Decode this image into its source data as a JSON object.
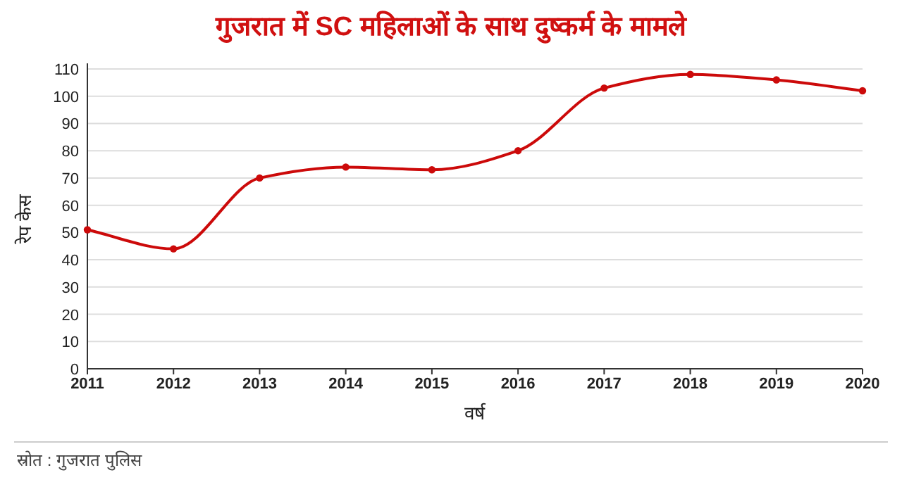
{
  "chart_data": {
    "type": "line",
    "title": "गुजरात में SC महिलाओं के साथ दुष्कर्म के मामले",
    "xlabel": "वर्ष",
    "ylabel": "रेप केस",
    "annotations": [
      "स्रोत : गुजरात पुलिस"
    ],
    "x": [
      2011,
      2012,
      2013,
      2014,
      2015,
      2016,
      2017,
      2018,
      2019,
      2020
    ],
    "series": [
      {
        "color": "#cc0a0a",
        "values": [
          51,
          44,
          70,
          74,
          73,
          80,
          103,
          108,
          106,
          102
        ]
      }
    ],
    "xlim": [
      2011,
      2020
    ],
    "xticks": [
      2011,
      2012,
      2013,
      2014,
      2015,
      2016,
      2017,
      2018,
      2019,
      2020
    ],
    "ylim": [
      0,
      110
    ],
    "yticks": [
      0,
      10,
      20,
      30,
      40,
      50,
      60,
      70,
      80,
      90,
      100,
      110
    ],
    "grid": "y",
    "marker": "circle",
    "line_style": "solid"
  }
}
